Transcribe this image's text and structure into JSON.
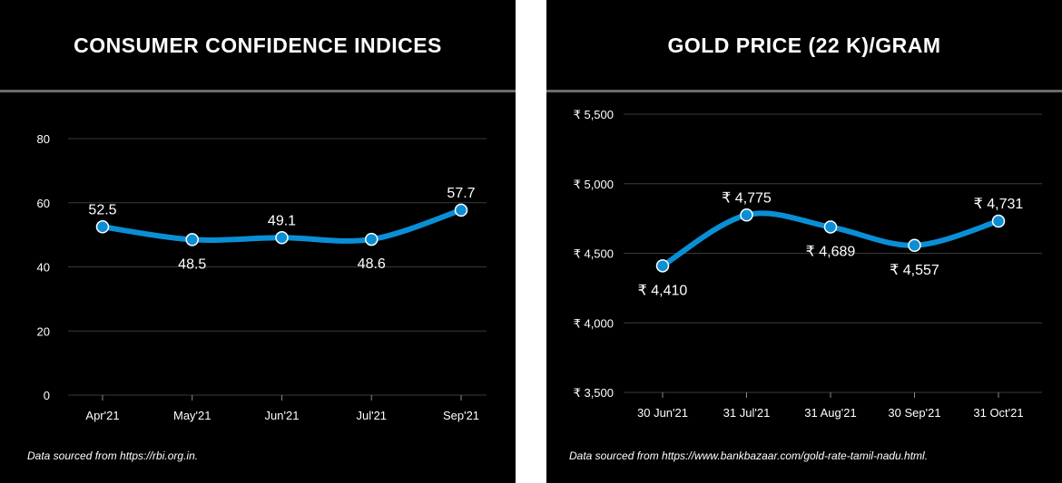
{
  "colors": {
    "background": "#000000",
    "line": "#0a8fd6",
    "grid": "#3a3a3a",
    "text": "#ffffff",
    "divider": "#6b6b6b"
  },
  "chart_data": [
    {
      "type": "line",
      "title": "CONSUMER CONFIDENCE INDICES",
      "categories": [
        "Apr'21",
        "May'21",
        "Jun'21",
        "Jul'21",
        "Sep'21"
      ],
      "values": [
        52.5,
        48.5,
        49.1,
        48.6,
        57.7
      ],
      "data_labels": [
        "52.5",
        "48.5",
        "49.1",
        "48.6",
        "57.7"
      ],
      "label_positions": [
        "above",
        "below",
        "above",
        "below",
        "above"
      ],
      "yticks": [
        0,
        20,
        40,
        60,
        80
      ],
      "ytick_labels": [
        "0",
        "20",
        "40",
        "60",
        "80"
      ],
      "ylim": [
        0,
        80
      ],
      "grid": true,
      "source": "Data sourced from https://rbi.org.in."
    },
    {
      "type": "line",
      "title": "GOLD PRICE (22 K)/GRAM",
      "categories": [
        "30 Jun'21",
        "31 Jul'21",
        "31 Aug'21",
        "30 Sep'21",
        "31 Oct'21"
      ],
      "values": [
        4410,
        4775,
        4689,
        4557,
        4731
      ],
      "data_labels": [
        "₹ 4,410",
        "₹ 4,775",
        "₹ 4,689",
        "₹ 4,557",
        "₹ 4,731"
      ],
      "label_positions": [
        "below",
        "above",
        "below",
        "below",
        "above"
      ],
      "yticks": [
        3500,
        4000,
        4500,
        5000,
        5500
      ],
      "ytick_labels": [
        "₹ 3,500",
        "₹ 4,000",
        "₹ 4,500",
        "₹ 5,000",
        "₹ 5,500"
      ],
      "ylim": [
        3500,
        5500
      ],
      "grid": true,
      "source": "Data sourced from https://www.bankbazaar.com/gold-rate-tamil-nadu.html."
    }
  ]
}
